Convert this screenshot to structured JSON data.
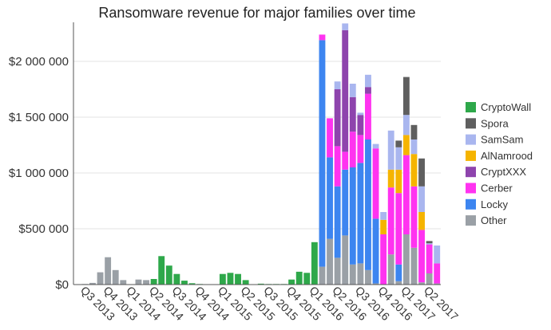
{
  "chart_data": {
    "type": "bar",
    "stacked": true,
    "title": "Ransomware revenue for major families over time",
    "xlabel": "",
    "ylabel": "",
    "ylim": [
      0,
      2350000
    ],
    "yticks": [
      0,
      500000,
      1000000,
      1500000,
      2000000
    ],
    "ytick_labels": [
      "$0",
      "$500 000",
      "$1 000 000",
      "$1 500 000",
      "$2 000 000"
    ],
    "xtick_labels": [
      "Q3 2013",
      "Q4 2013",
      "Q1 2014",
      "Q2 2014",
      "Q3 2014",
      "Q4 2014",
      "Q1 2015",
      "Q2 2015",
      "Q3 2015",
      "Q4 2015",
      "Q1 2016",
      "Q2 2016",
      "Q3 2016",
      "Q4 2016",
      "Q1 2017",
      "Q2 2017"
    ],
    "grid": true,
    "legend_position": "right",
    "colors": {
      "CryptoWall": "#2ea84a",
      "Spora": "#5f5f5f",
      "SamSam": "#a9b6ef",
      "AlNamrood": "#f5b400",
      "CryptXXX": "#8e44ad",
      "Cerber": "#ff33f0",
      "Locky": "#3d85f0",
      "Other": "#9aa0a6"
    },
    "legend": [
      "CryptoWall",
      "Spora",
      "SamSam",
      "AlNamrood",
      "CryptXXX",
      "Cerber",
      "Locky",
      "Other"
    ],
    "stack_order": [
      "Other",
      "Locky",
      "Cerber",
      "CryptXXX",
      "AlNamrood",
      "SamSam",
      "Spora",
      "CryptoWall"
    ],
    "bars": [
      {
        "Other": 0
      },
      {
        "Other": 5000
      },
      {
        "Other": 15000
      },
      {
        "Other": 110000
      },
      {
        "Other": 245000
      },
      {
        "Other": 130000
      },
      {
        "Other": 40000
      },
      {
        "Other": 0
      },
      {
        "Other": 45000
      },
      {
        "Other": 40000
      },
      {
        "CryptoWall": 50000
      },
      {
        "CryptoWall": 255000
      },
      {
        "CryptoWall": 170000
      },
      {
        "CryptoWall": 95000
      },
      {
        "CryptoWall": 35000
      },
      {
        "CryptoWall": 12000
      },
      {
        "CryptoWall": 5000
      },
      {},
      {},
      {
        "CryptoWall": 95000
      },
      {
        "CryptoWall": 105000
      },
      {
        "CryptoWall": 95000
      },
      {
        "CryptoWall": 40000
      },
      {},
      {
        "CryptoWall": 8000
      },
      {
        "CryptoWall": 5000
      },
      {
        "CryptoWall": 5000
      },
      {
        "CryptoWall": 5000
      },
      {
        "CryptoWall": 45000
      },
      {
        "CryptoWall": 115000
      },
      {
        "CryptoWall": 105000
      },
      {
        "CryptoWall": 380000
      },
      {
        "Other": 160000,
        "Locky": 2030000,
        "Cerber": 50000
      },
      {
        "Other": 410000,
        "Locky": 730000,
        "Cerber": 350000
      },
      {
        "Other": 240000,
        "Locky": 640000,
        "Cerber": 360000,
        "CryptXXX": 510000,
        "SamSam": 70000
      },
      {
        "Other": 440000,
        "Locky": 590000,
        "Cerber": 160000,
        "CryptXXX": 1090000,
        "SamSam": 60000
      },
      {
        "Other": 180000,
        "Locky": 870000,
        "Cerber": 320000,
        "CryptXXX": 310000,
        "SamSam": 120000
      },
      {
        "Other": 190000,
        "Locky": 900000,
        "Cerber": 250000,
        "CryptXXX": 180000,
        "SamSam": 20000
      },
      {
        "Other": 130000,
        "Locky": 1170000,
        "Cerber": 410000,
        "CryptXXX": 60000,
        "SamSam": 110000
      },
      {
        "Other": 10000,
        "Locky": 580000,
        "Cerber": 630000,
        "SamSam": 40000
      },
      {
        "Cerber": 450000,
        "AlNamrood": 130000,
        "SamSam": 70000
      },
      {
        "Other": 270000,
        "Cerber": 600000,
        "AlNamrood": 160000,
        "SamSam": 350000
      },
      {
        "Other": 30000,
        "Locky": 150000,
        "Cerber": 640000,
        "AlNamrood": 210000,
        "SamSam": 200000,
        "Spora": 60000
      },
      {
        "Other": 450000,
        "Cerber": 710000,
        "AlNamrood": 180000,
        "SamSam": 180000,
        "Spora": 340000
      },
      {
        "Other": 330000,
        "Cerber": 550000,
        "AlNamrood": 290000,
        "SamSam": 130000,
        "Spora": 130000
      },
      {
        "Other": 20000,
        "Cerber": 470000,
        "AlNamrood": 160000,
        "SamSam": 230000,
        "Spora": 250000
      },
      {
        "Other": 100000,
        "Cerber": 260000,
        "SamSam": 10000,
        "Spora": 20000
      },
      {
        "Other": 10000,
        "Cerber": 180000,
        "SamSam": 160000
      }
    ]
  }
}
